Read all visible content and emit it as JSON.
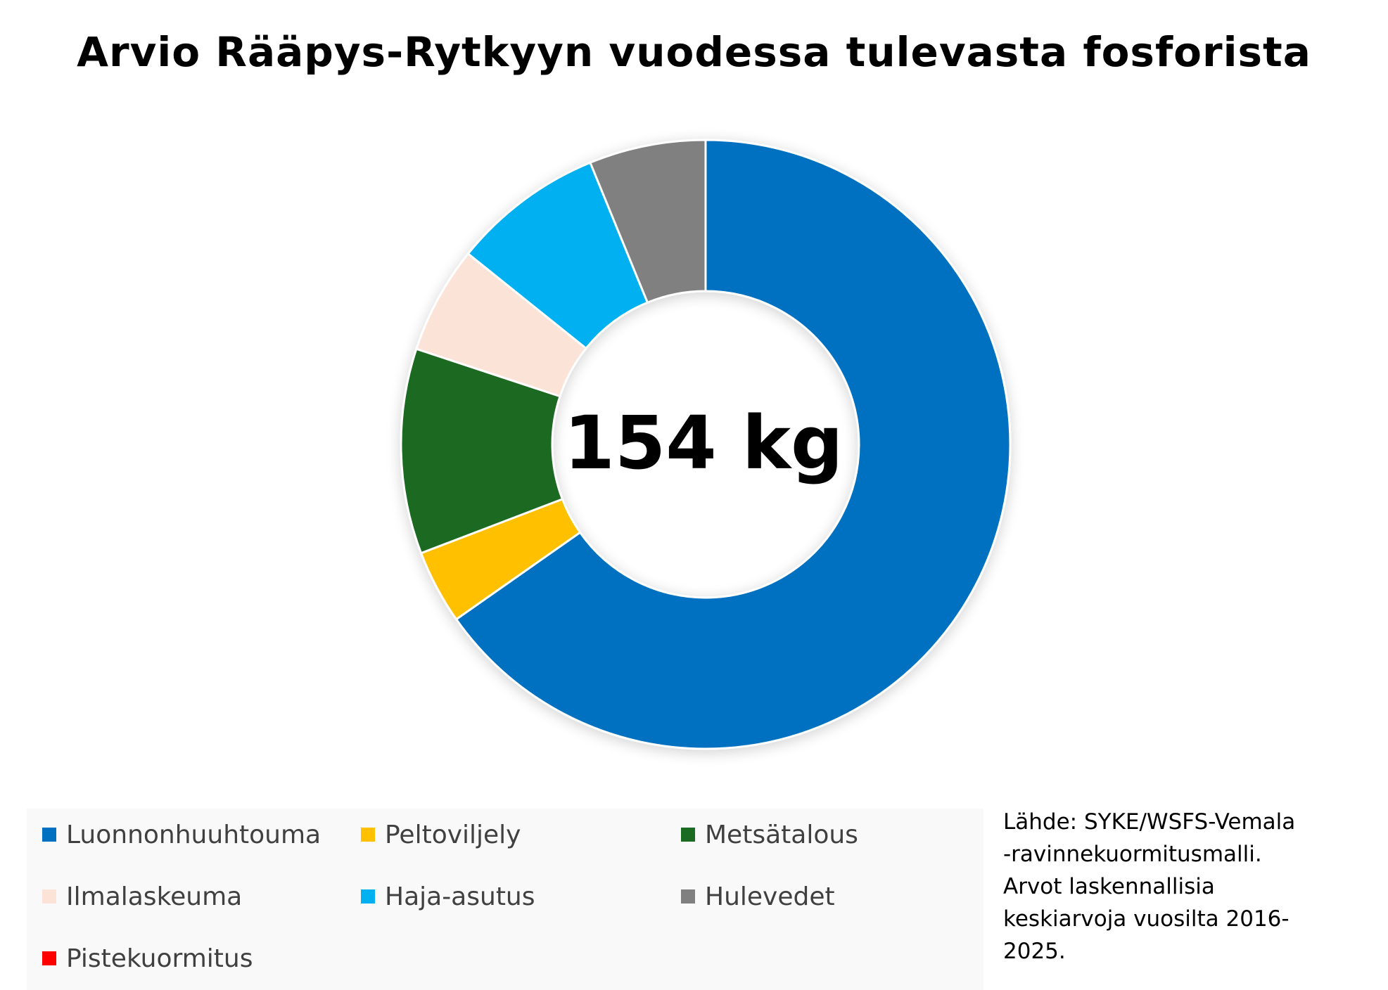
{
  "chart_data": {
    "type": "pie",
    "title": "Arvio Rääpys-Rytkyyn vuodessa tulevasta fosforista",
    "center_label": "154 kg",
    "legend_position": "bottom",
    "series": [
      {
        "name": "Luonnonhuuhtouma",
        "value": 66.5,
        "color": "#0070C0"
      },
      {
        "name": "Peltoviljely",
        "value": 4.0,
        "color": "#FFC000"
      },
      {
        "name": "Metsätalous",
        "value": 11.1,
        "color": "#1C6B23"
      },
      {
        "name": "Ilmalaskeuma",
        "value": 5.8,
        "color": "#FBE3D8"
      },
      {
        "name": "Haja-asutus",
        "value": 8.2,
        "color": "#00B0F0"
      },
      {
        "name": "Hulevedet",
        "value": 6.3,
        "color": "#808080"
      },
      {
        "name": "Pistekuormitus",
        "value": 0,
        "color": "#FF0000"
      }
    ]
  },
  "source_note": [
    "Lähde: SYKE/WSFS-Vemala",
    "-ravinnekuormitusmalli.",
    "Arvot laskennallisia",
    "keskiarvoja vuosilta 2016-",
    "2025."
  ]
}
